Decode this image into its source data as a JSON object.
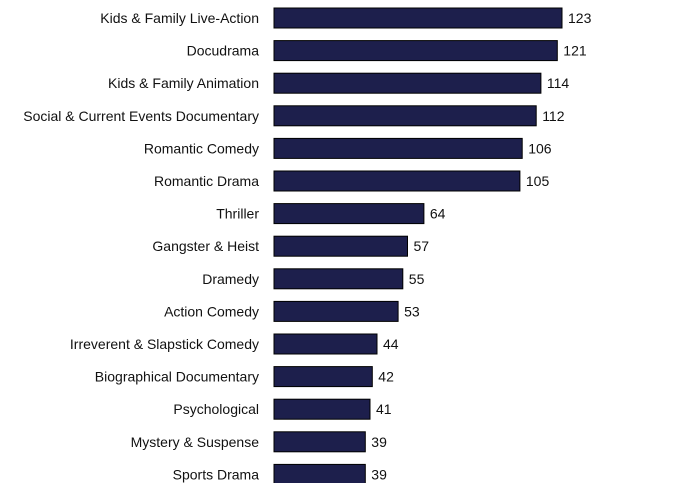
{
  "chart_data": {
    "type": "bar",
    "orientation": "horizontal",
    "categories": [
      "Kids & Family Live-Action",
      "Docudrama",
      "Kids & Family Animation",
      "Social & Current Events Documentary",
      "Romantic Comedy",
      "Romantic Drama",
      "Thriller",
      "Gangster & Heist",
      "Dramedy",
      "Action Comedy",
      "Irreverent & Slapstick Comedy",
      "Biographical Documentary",
      "Psychological",
      "Mystery & Suspense",
      "Sports Drama"
    ],
    "values": [
      123,
      121,
      114,
      112,
      106,
      105,
      64,
      57,
      55,
      53,
      44,
      42,
      41,
      39,
      39
    ],
    "title": "",
    "xlabel": "",
    "ylabel": "",
    "xlim": [
      0,
      123
    ],
    "grid": false,
    "legend": "none",
    "data_labels": true,
    "bar_color": "#1d1f4c",
    "bar_edge_color": "#000000",
    "text_color": "#111111"
  }
}
